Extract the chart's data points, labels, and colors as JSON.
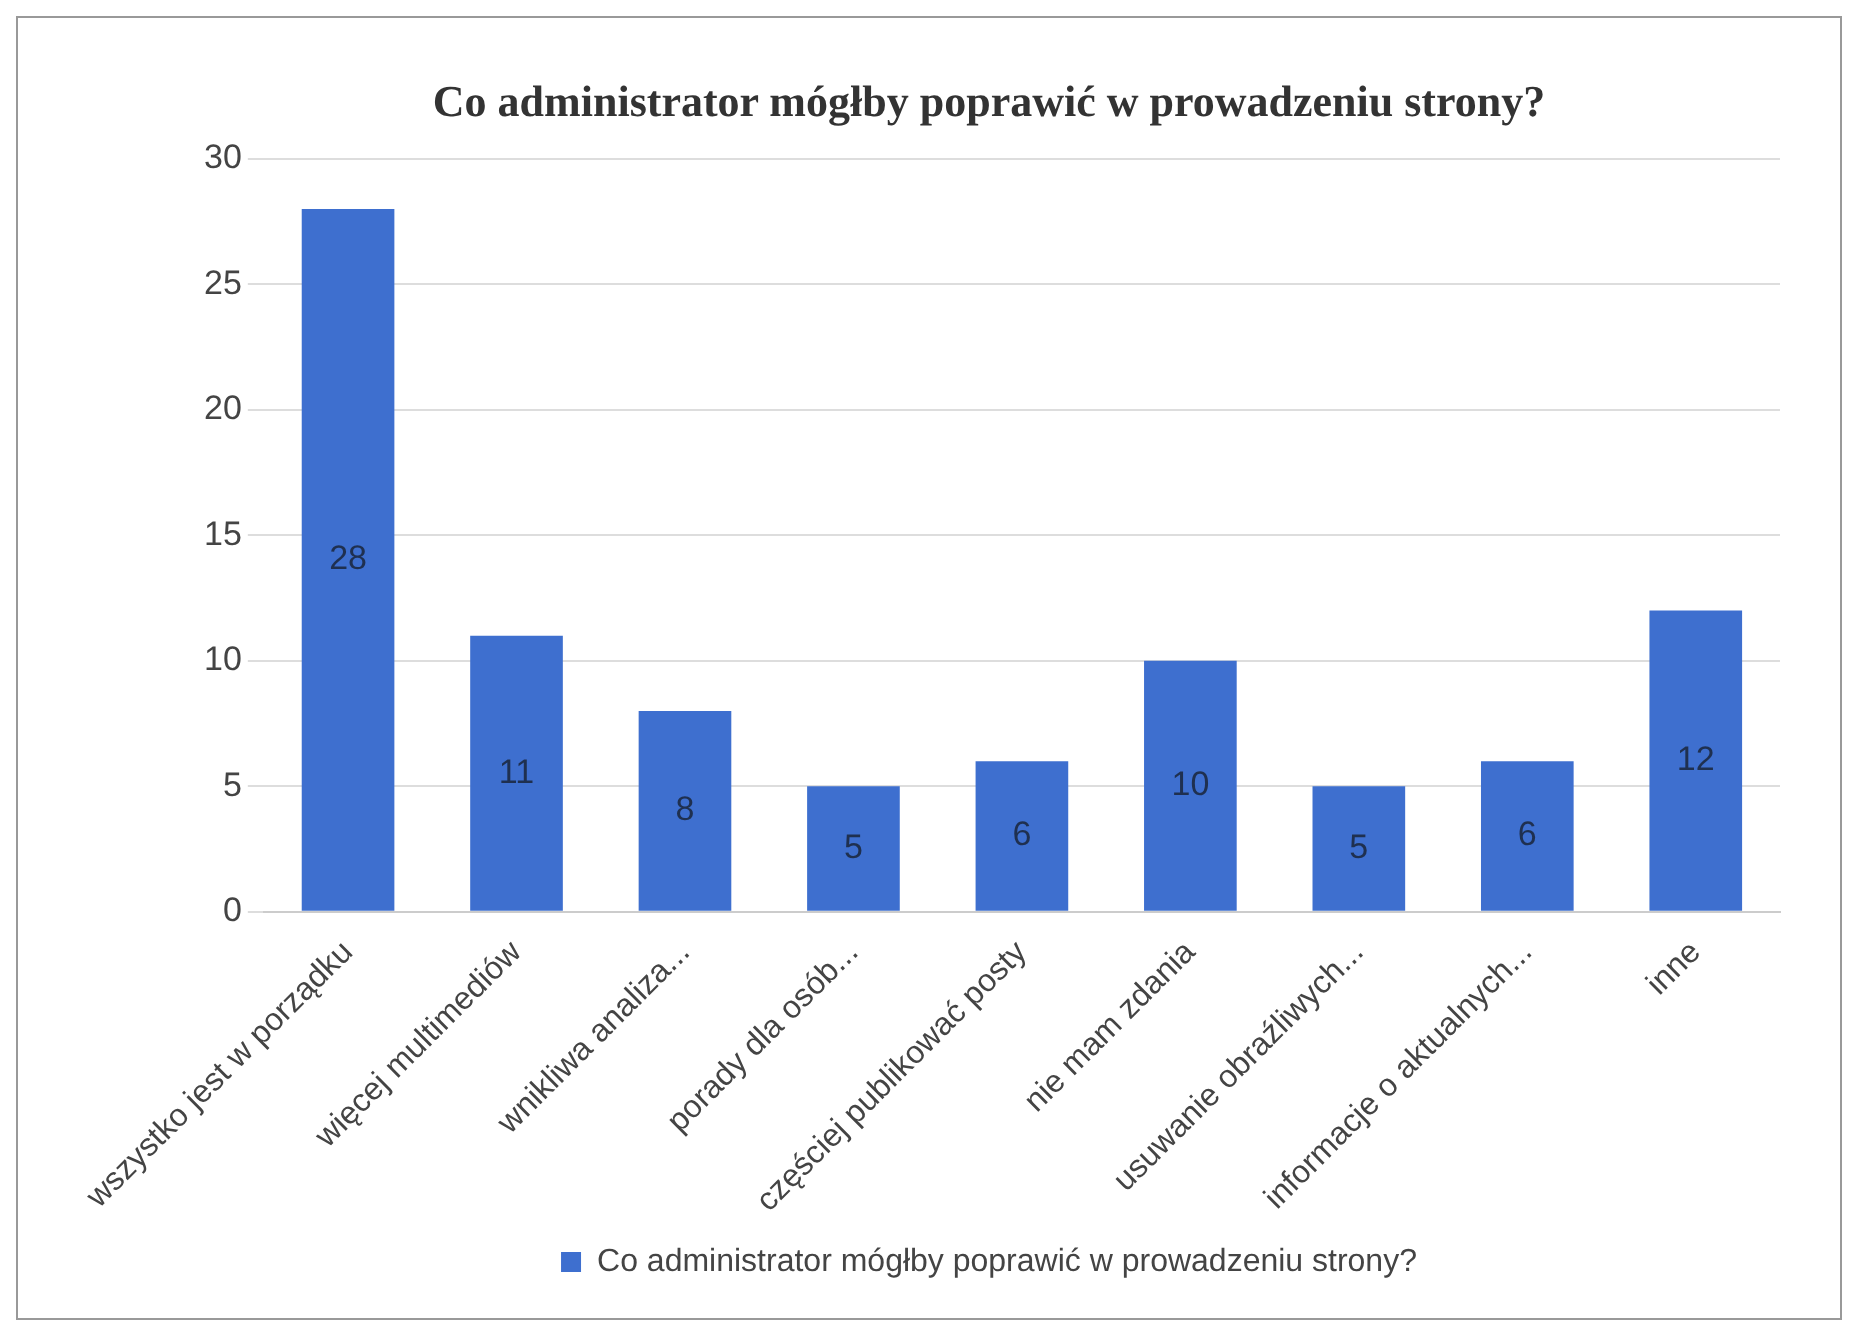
{
  "chart_data": {
    "type": "bar",
    "title": "Co administrator mógłby poprawić w prowadzeniu strony?",
    "categories": [
      "wszystko jest w porządku",
      "więcej multimediów",
      "wnikliwa analiza...",
      "porady dla osób...",
      "częściej publikować posty",
      "nie mam zdania",
      "usuwanie obraźliwych...",
      "informacje o aktualnych...",
      "inne"
    ],
    "series": [
      {
        "name": "Co administrator mógłby poprawić w prowadzeniu strony?",
        "color": "#3e6fcf",
        "values": [
          28,
          11,
          8,
          5,
          6,
          10,
          5,
          6,
          12
        ]
      }
    ],
    "ylim": [
      0,
      30
    ],
    "yticks": [
      0,
      5,
      10,
      15,
      20,
      25,
      30
    ],
    "grid": "y",
    "legend": "bottom",
    "data_labels": true
  }
}
